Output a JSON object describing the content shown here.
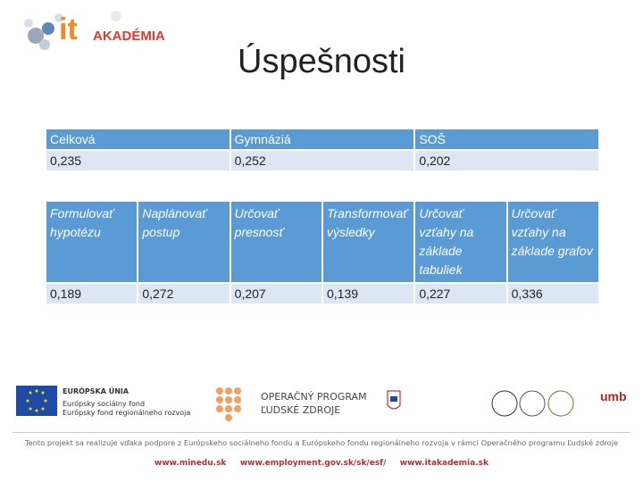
{
  "header": {
    "logo": {
      "it": "it",
      "name": "AKADÉMIA"
    },
    "title": "Úspešnosti"
  },
  "table1": {
    "headers": [
      "Celková",
      "Gymnáziá",
      "SOŠ"
    ],
    "rows": [
      [
        "0,235",
        "0,252",
        "0,202"
      ]
    ]
  },
  "table2": {
    "headers": [
      "Formulovať hypotézu",
      "Naplánovať postup",
      "Určovať presnosť",
      "Transformovať výsledky",
      "Určovať vzťahy na základe tabuliek",
      "Určovať vzťahy na základe grafov"
    ],
    "rows": [
      [
        "0,189",
        "0,272",
        "0,207",
        "0,139",
        "0,227",
        "0,336"
      ]
    ]
  },
  "footer": {
    "eu": [
      "EURÓPSKA ÚNIA",
      "Európsky sociálny fond",
      "Európsky fond regionálneho rozvoja"
    ],
    "program": [
      "OPERAČNÝ PROGRAM",
      "ĽUDSKÉ ZDROJE"
    ],
    "umb": "umb",
    "note": "Tento projekt sa realizuje vďaka podpore z Európskeho sociálneho fondu a Európskeho fondu regionálneho rozvoja v rámci Operačného programu Ľudské zdroje",
    "links": [
      "www.minedu.sk",
      "www.employment.gov.sk/sk/esf/",
      "www.itakademia.sk"
    ]
  }
}
